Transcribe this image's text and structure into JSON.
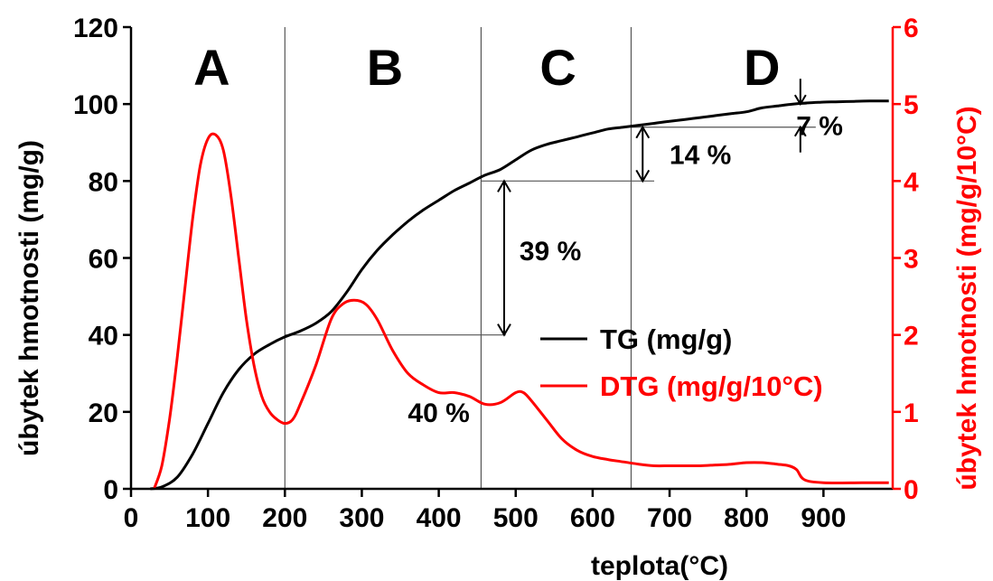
{
  "chart_data": {
    "type": "line",
    "xlabel": "teplota(°C)",
    "ylabel_left": "úbytek hmotnosti (mg/g)",
    "ylabel_right": "úbytek hmotnosti (mg/g/10°C)",
    "xlim": [
      0,
      990
    ],
    "ylim_left": [
      0,
      120
    ],
    "ylim_right": [
      0,
      6
    ],
    "x_ticks": [
      0,
      100,
      200,
      300,
      400,
      500,
      600,
      700,
      800,
      900
    ],
    "y_left_ticks": [
      0,
      20,
      40,
      60,
      80,
      100,
      120
    ],
    "y_right_ticks": [
      0,
      1,
      2,
      3,
      4,
      5,
      6
    ],
    "grid": false,
    "legend_position": "center-right",
    "colors": {
      "tg": "#000000",
      "dtg": "#ff0000"
    },
    "series": [
      {
        "name": "TG (mg/g)",
        "axis": "left",
        "x": [
          25,
          40,
          60,
          80,
          100,
          120,
          140,
          160,
          180,
          200,
          220,
          240,
          260,
          280,
          300,
          320,
          340,
          360,
          380,
          400,
          420,
          440,
          460,
          480,
          500,
          520,
          540,
          560,
          580,
          600,
          620,
          640,
          660,
          680,
          700,
          720,
          740,
          760,
          780,
          800,
          820,
          840,
          860,
          880,
          900,
          920,
          940,
          960,
          985
        ],
        "y": [
          0,
          0.5,
          3,
          9,
          17,
          25,
          31,
          35,
          37.5,
          39.5,
          41,
          43,
          46,
          51,
          57,
          62,
          66,
          69.5,
          72.5,
          75,
          77.5,
          79.5,
          81.5,
          83,
          85.5,
          88,
          89.5,
          90.5,
          91.5,
          92.5,
          93.5,
          94,
          94.5,
          95,
          95.5,
          96,
          96.5,
          97,
          97.5,
          98,
          99,
          99.5,
          100,
          100.3,
          100.5,
          100.6,
          100.7,
          100.8,
          100.8
        ]
      },
      {
        "name": "DTG (mg/g/10°C)",
        "axis": "right",
        "x": [
          30,
          40,
          50,
          60,
          70,
          80,
          90,
          100,
          110,
          120,
          130,
          140,
          150,
          160,
          170,
          180,
          190,
          200,
          210,
          220,
          240,
          260,
          275,
          290,
          305,
          320,
          340,
          360,
          380,
          400,
          420,
          440,
          460,
          480,
          500,
          510,
          520,
          540,
          560,
          580,
          600,
          620,
          640,
          660,
          680,
          700,
          720,
          740,
          760,
          780,
          800,
          820,
          840,
          855,
          865,
          875,
          900,
          950,
          985
        ],
        "y": [
          0,
          0.3,
          0.9,
          1.7,
          2.6,
          3.5,
          4.2,
          4.55,
          4.6,
          4.4,
          3.8,
          3.0,
          2.2,
          1.6,
          1.2,
          1.0,
          0.9,
          0.85,
          0.9,
          1.1,
          1.6,
          2.2,
          2.4,
          2.45,
          2.4,
          2.2,
          1.8,
          1.5,
          1.35,
          1.25,
          1.25,
          1.2,
          1.1,
          1.12,
          1.25,
          1.25,
          1.15,
          0.9,
          0.65,
          0.5,
          0.42,
          0.38,
          0.35,
          0.32,
          0.3,
          0.3,
          0.3,
          0.3,
          0.31,
          0.32,
          0.34,
          0.34,
          0.32,
          0.3,
          0.25,
          0.12,
          0.08,
          0.08,
          0.08
        ]
      }
    ],
    "regions": [
      {
        "label": "A",
        "x_center": 105
      },
      {
        "label": "B",
        "x_center": 330
      },
      {
        "label": "C",
        "x_center": 555
      },
      {
        "label": "D",
        "x_center": 820
      }
    ],
    "region_boundaries": [
      200,
      455,
      650
    ],
    "annotations": [
      {
        "label": "40 %",
        "x": 400,
        "y": 20
      },
      {
        "label": "39 %",
        "x": 545,
        "y": 62,
        "y_from": 40,
        "y_to": 80,
        "arrow_x": 485
      },
      {
        "label": "14 %",
        "x": 740,
        "y": 87,
        "y_from": 80,
        "y_to": 94,
        "arrow_x": 665
      },
      {
        "label": "7 %",
        "x": 895,
        "y": 94.5,
        "y_from": 94,
        "y_to": 100,
        "arrow_x": 870
      }
    ]
  }
}
